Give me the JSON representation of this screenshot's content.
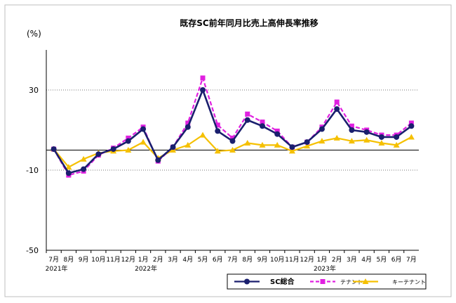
{
  "chart_data": {
    "type": "line",
    "title": "既存SC前年同月比売上高伸長率推移",
    "ylabel": "(%)",
    "ylim": [
      -50,
      50
    ],
    "yticks": [
      {
        "value": 30,
        "label": "30"
      },
      {
        "value": -10,
        "label": "-10"
      },
      {
        "value": -50,
        "label": "-50"
      }
    ],
    "zero_line": true,
    "grid": "horizontal dotted at 30 and -10",
    "legend_position": "bottom-right",
    "categories": [
      "7月",
      "8月",
      "9月",
      "10月",
      "11月",
      "12月",
      "1月",
      "2月",
      "3月",
      "4月",
      "5月",
      "6月",
      "7月",
      "8月",
      "9月",
      "10月",
      "11月",
      "12月",
      "1月",
      "2月",
      "3月",
      "4月",
      "5月",
      "6月",
      "7月"
    ],
    "year_labels": [
      {
        "index": 0,
        "label": "2021年"
      },
      {
        "index": 6,
        "label": "2022年"
      },
      {
        "index": 18,
        "label": "2023年"
      }
    ],
    "series": [
      {
        "name": "SC総合",
        "color": "#1a1f6e",
        "dash": "solid",
        "marker": "circle",
        "values": [
          0.5,
          -11.5,
          -9.5,
          -2,
          0.5,
          4.5,
          10.5,
          -5,
          1.5,
          11.5,
          30,
          9.5,
          4.5,
          15,
          12,
          8,
          1.5,
          4,
          10.5,
          20.5,
          10,
          9,
          6.5,
          6.5,
          12
        ]
      },
      {
        "name": "テナント",
        "color": "#e020e0",
        "dash": "dashed",
        "marker": "square",
        "values": [
          0.5,
          -12.5,
          -10.5,
          -2.5,
          1,
          6,
          11.5,
          -5.5,
          1.5,
          13.5,
          36,
          12.5,
          6,
          18,
          14,
          9.5,
          1.5,
          4,
          11.5,
          24,
          12,
          10,
          7.5,
          7.5,
          13.5
        ]
      },
      {
        "name": "キーテナント",
        "color": "#f5c000",
        "dash": "solid",
        "marker": "triangle",
        "values": [
          0.5,
          -8.5,
          -4.5,
          -1.5,
          -0.5,
          0,
          4,
          -4,
          0,
          2.5,
          7.5,
          -0.5,
          0,
          3.5,
          2.5,
          2.5,
          -0.5,
          2,
          4.5,
          6,
          4.5,
          5,
          3.5,
          2.5,
          6.5
        ]
      }
    ]
  }
}
